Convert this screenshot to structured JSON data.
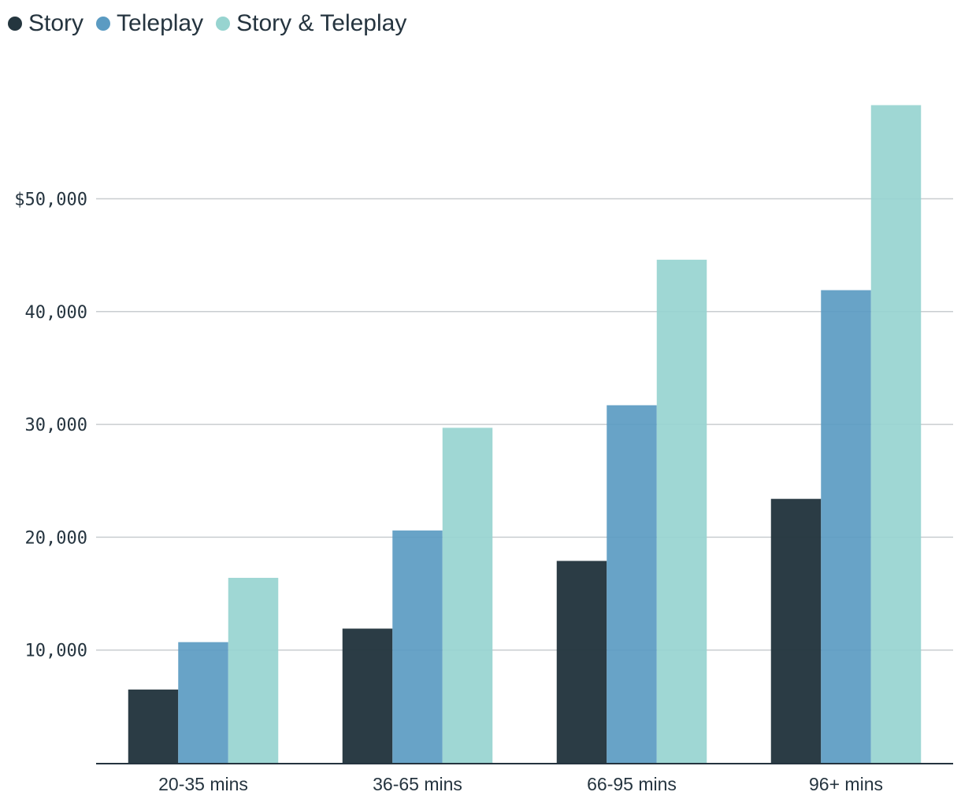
{
  "chart_data": {
    "type": "bar",
    "categories": [
      "20-35 mins",
      "36-65 mins",
      "66-95 mins",
      "96+ mins"
    ],
    "series": [
      {
        "name": "Story",
        "color": "#24363f",
        "values": [
          6500,
          11900,
          17900,
          23400
        ]
      },
      {
        "name": "Teleplay",
        "color": "#5b9bc2",
        "values": [
          10700,
          20600,
          31700,
          41900
        ]
      },
      {
        "name": "Story & Teleplay",
        "color": "#97d4d0",
        "values": [
          16400,
          29700,
          44600,
          58300
        ]
      }
    ],
    "y_ticks": [
      {
        "value": 10000,
        "label": "10,000"
      },
      {
        "value": 20000,
        "label": "20,000"
      },
      {
        "value": 30000,
        "label": "30,000"
      },
      {
        "value": 40000,
        "label": "40,000"
      },
      {
        "value": 50000,
        "label": "$50,000"
      }
    ],
    "ylim": [
      0,
      60000
    ],
    "grid": true,
    "legend_position": "top-left",
    "title": "",
    "xlabel": "",
    "ylabel": ""
  }
}
